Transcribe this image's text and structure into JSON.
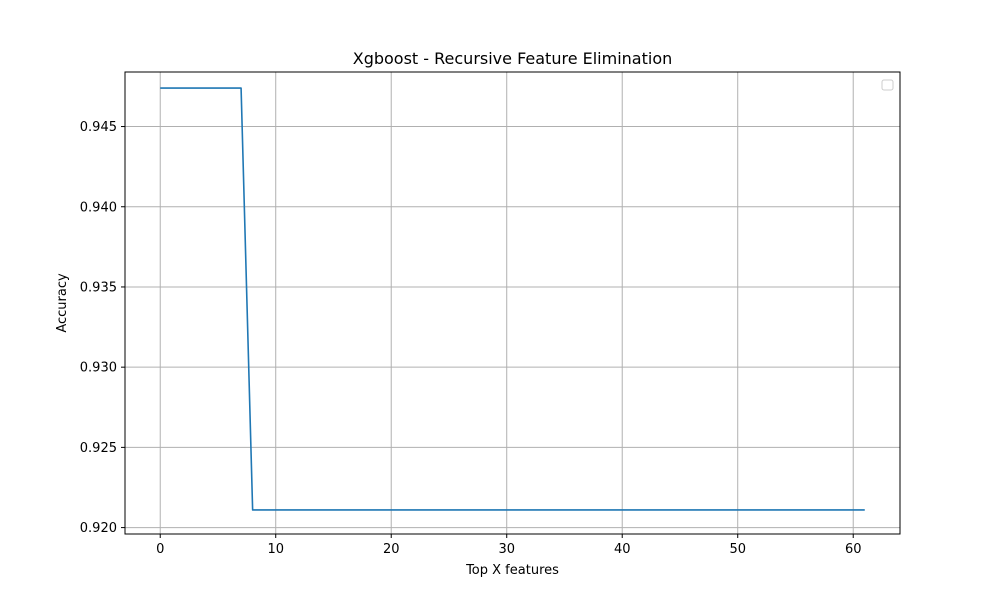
{
  "chart_data": {
    "type": "line",
    "title": "Xgboost - Recursive Feature Elimination",
    "xlabel": "Top X features",
    "ylabel": "Accuracy",
    "xlim": [
      -3.05,
      64.05
    ],
    "ylim": [
      0.9196,
      0.9484
    ],
    "xticks": [
      0,
      10,
      20,
      30,
      40,
      50,
      60
    ],
    "xtick_labels": [
      "0",
      "10",
      "20",
      "30",
      "40",
      "50",
      "60"
    ],
    "yticks": [
      0.92,
      0.925,
      0.93,
      0.935,
      0.94,
      0.945
    ],
    "ytick_labels": [
      "0.920",
      "0.925",
      "0.930",
      "0.935",
      "0.940",
      "0.945"
    ],
    "grid": true,
    "legend": {
      "position": "upper-right",
      "entries": []
    },
    "colors": {
      "line": "#1f77b4",
      "grid": "#b0b0b0",
      "axes": "#000000"
    },
    "series": [
      {
        "x": [
          0,
          1,
          2,
          3,
          4,
          5,
          6,
          7,
          8,
          9,
          10,
          11,
          12,
          13,
          14,
          15,
          16,
          17,
          18,
          19,
          20,
          21,
          22,
          23,
          24,
          25,
          26,
          27,
          28,
          29,
          30,
          31,
          32,
          33,
          34,
          35,
          36,
          37,
          38,
          39,
          40,
          41,
          42,
          43,
          44,
          45,
          46,
          47,
          48,
          49,
          50,
          51,
          52,
          53,
          54,
          55,
          56,
          57,
          58,
          59,
          60,
          61
        ],
        "values": [
          0.9474,
          0.9474,
          0.9474,
          0.9474,
          0.9474,
          0.9474,
          0.9474,
          0.9474,
          0.9211,
          0.9211,
          0.9211,
          0.9211,
          0.9211,
          0.9211,
          0.9211,
          0.9211,
          0.9211,
          0.9211,
          0.9211,
          0.9211,
          0.9211,
          0.9211,
          0.9211,
          0.9211,
          0.9211,
          0.9211,
          0.9211,
          0.9211,
          0.9211,
          0.9211,
          0.9211,
          0.9211,
          0.9211,
          0.9211,
          0.9211,
          0.9211,
          0.9211,
          0.9211,
          0.9211,
          0.9211,
          0.9211,
          0.9211,
          0.9211,
          0.9211,
          0.9211,
          0.9211,
          0.9211,
          0.9211,
          0.9211,
          0.9211,
          0.9211,
          0.9211,
          0.9211,
          0.9211,
          0.9211,
          0.9211,
          0.9211,
          0.9211,
          0.9211,
          0.9211,
          0.9211,
          0.9211
        ]
      }
    ]
  }
}
